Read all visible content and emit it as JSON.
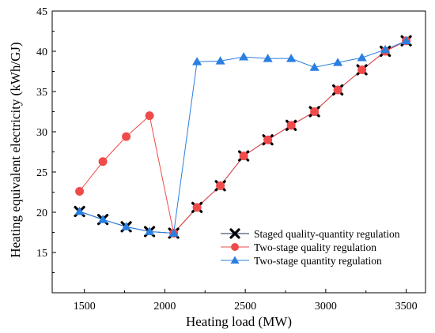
{
  "chart_data": {
    "type": "line",
    "xlabel": "Heating load (MW)",
    "ylabel": "Heating equivalent electricity (kWh/GJ)",
    "xlim": [
      1300,
      3620
    ],
    "ylim": [
      10,
      45
    ],
    "xticks": [
      1500,
      2000,
      2500,
      3000,
      3500
    ],
    "yticks": [
      15,
      20,
      25,
      30,
      35,
      40,
      45
    ],
    "grid": false,
    "legend_position": "bottom-right",
    "series": [
      {
        "name": "Staged quality-quantity regulation",
        "marker": "x",
        "color": "#000000",
        "line_color": "#1f2f5a",
        "x": [
          1470,
          1615,
          1760,
          1905,
          2055,
          2200,
          2345,
          2490,
          2640,
          2785,
          2930,
          3075,
          3225,
          3370,
          3500
        ],
        "y": [
          20.1,
          19.1,
          18.2,
          17.6,
          17.4,
          20.6,
          23.3,
          27.0,
          29.0,
          30.8,
          32.5,
          35.2,
          37.7,
          40.0,
          41.3
        ]
      },
      {
        "name": "Two-stage quality regulation",
        "marker": "circle",
        "color": "#f04b4b",
        "line_color": "#f04b4b",
        "x": [
          1470,
          1615,
          1760,
          1905,
          2055,
          2200,
          2345,
          2490,
          2640,
          2785,
          2930,
          3075,
          3225,
          3370,
          3500
        ],
        "y": [
          22.6,
          26.3,
          29.4,
          32.0,
          17.4,
          20.6,
          23.3,
          27.0,
          29.0,
          30.8,
          32.5,
          35.2,
          37.7,
          40.0,
          41.3
        ]
      },
      {
        "name": "Two-stage quantity regulation",
        "marker": "triangle",
        "color": "#2a7fe0",
        "line_color": "#2a7fe0",
        "x": [
          1470,
          1615,
          1760,
          1905,
          2055,
          2200,
          2345,
          2490,
          2640,
          2785,
          2930,
          3075,
          3225,
          3370,
          3500
        ],
        "y": [
          20.1,
          19.1,
          18.2,
          17.6,
          17.4,
          38.7,
          38.8,
          39.3,
          39.1,
          39.1,
          38.0,
          38.6,
          39.2,
          40.2,
          41.3
        ]
      }
    ]
  }
}
